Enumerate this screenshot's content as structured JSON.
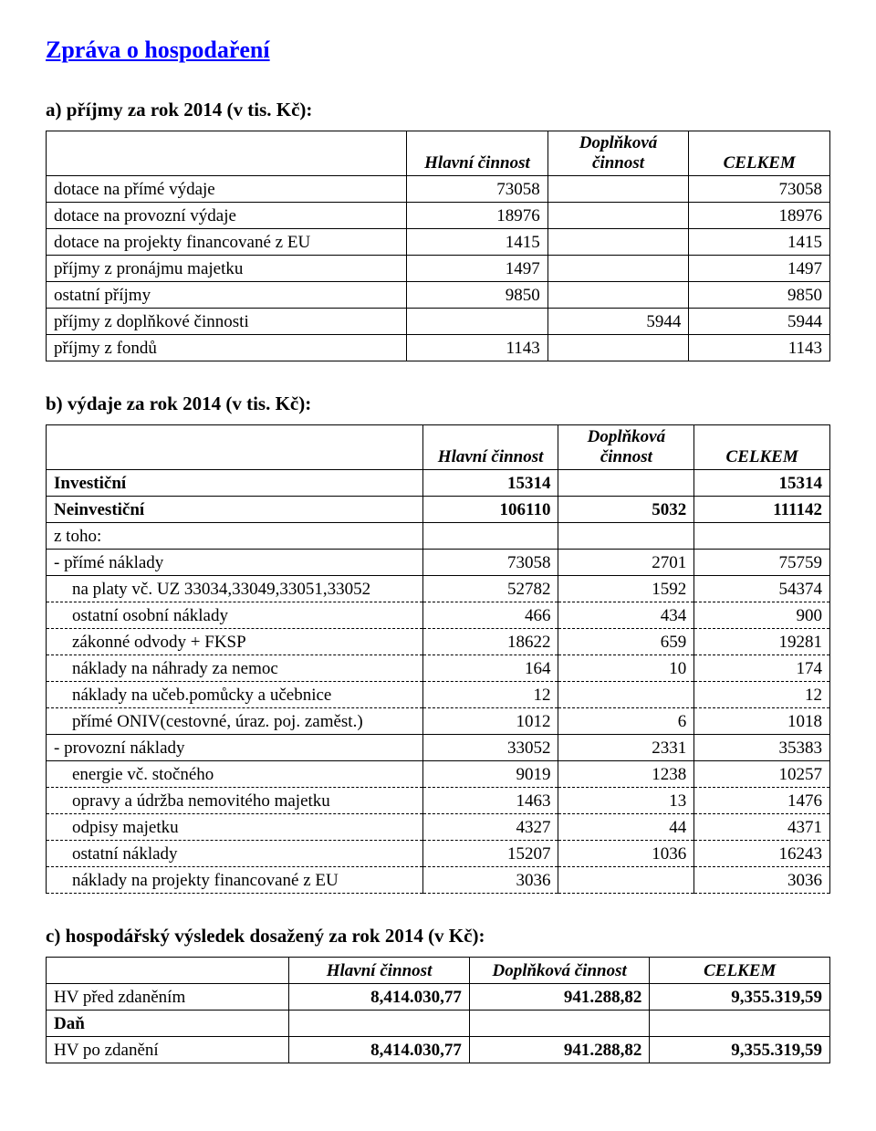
{
  "main_title": "Zpráva o hospodaření",
  "section_a": {
    "heading": "a)  příjmy za rok 2014 (v tis. Kč):",
    "columns": [
      "",
      "Hlavní činnost",
      "Doplňková činnost",
      "CELKEM"
    ],
    "rows": [
      {
        "label": "dotace na přímé výdaje",
        "c1": "73058",
        "c2": "",
        "c3": "73058"
      },
      {
        "label": "dotace na provozní výdaje",
        "c1": "18976",
        "c2": "",
        "c3": "18976"
      },
      {
        "label": "dotace na projekty financované z EU",
        "c1": "1415",
        "c2": "",
        "c3": "1415"
      },
      {
        "label": "příjmy z pronájmu majetku",
        "c1": "1497",
        "c2": "",
        "c3": "1497"
      },
      {
        "label": "ostatní příjmy",
        "c1": "9850",
        "c2": "",
        "c3": "9850"
      },
      {
        "label": "příjmy z doplňkové činnosti",
        "c1": "",
        "c2": "5944",
        "c3": "5944"
      },
      {
        "label": "příjmy z fondů",
        "c1": "1143",
        "c2": "",
        "c3": "1143"
      }
    ]
  },
  "section_b": {
    "heading": "b)  výdaje za rok 2014 (v tis. Kč):",
    "columns": [
      "",
      "Hlavní činnost",
      "Doplňková činnost",
      "CELKEM"
    ],
    "rows": [
      {
        "label": "Investiční",
        "c1": "15314",
        "c2": "",
        "c3": "15314",
        "bold": true
      },
      {
        "label": "Neinvestiční",
        "c1": "106110",
        "c2": "5032",
        "c3": "111142",
        "bold": true
      },
      {
        "label": "z toho:",
        "c1": "",
        "c2": "",
        "c3": ""
      },
      {
        "label": "- přímé náklady",
        "c1": "73058",
        "c2": "2701",
        "c3": "75759"
      },
      {
        "label": "na platy vč. UZ 33034,33049,33051,33052",
        "c1": "52782",
        "c2": "1592",
        "c3": "54374",
        "indent": true,
        "dashed": true
      },
      {
        "label": "ostatní osobní náklady",
        "c1": "466",
        "c2": "434",
        "c3": "900",
        "indent": true,
        "dashed": true
      },
      {
        "label": "zákonné odvody + FKSP",
        "c1": "18622",
        "c2": "659",
        "c3": "19281",
        "indent": true,
        "dashed": true
      },
      {
        "label": "náklady na náhrady za nemoc",
        "c1": "164",
        "c2": "10",
        "c3": "174",
        "indent": true,
        "dashed": true
      },
      {
        "label": "náklady na učeb.pomůcky a učebnice",
        "c1": "12",
        "c2": "",
        "c3": "12",
        "indent": true,
        "dashed": true
      },
      {
        "label": "přímé ONIV(cestovné, úraz. poj. zaměst.)",
        "c1": "1012",
        "c2": "6",
        "c3": "1018",
        "indent": true,
        "dashed": true
      },
      {
        "label": " - provozní náklady",
        "c1": "33052",
        "c2": "2331",
        "c3": "35383"
      },
      {
        "label": "energie vč. stočného",
        "c1": "9019",
        "c2": "1238",
        "c3": "10257",
        "indent": true,
        "dashed": true
      },
      {
        "label": "opravy a údržba nemovitého majetku",
        "c1": "1463",
        "c2": "13",
        "c3": "1476",
        "indent": true,
        "dashed": true
      },
      {
        "label": "odpisy majetku",
        "c1": "4327",
        "c2": "44",
        "c3": "4371",
        "indent": true,
        "dashed": true
      },
      {
        "label": "ostatní náklady",
        "c1": "15207",
        "c2": "1036",
        "c3": "16243",
        "indent": true,
        "dashed": true
      },
      {
        "label": "náklady na projekty financované z EU",
        "c1": "3036",
        "c2": "",
        "c3": "3036",
        "indent": true,
        "dashed": true
      }
    ]
  },
  "section_c": {
    "heading": "c)  hospodářský výsledek dosažený za rok 2014 (v Kč):",
    "columns": [
      "",
      "Hlavní činnost",
      "Doplňková činnost",
      "CELKEM"
    ],
    "rows": [
      {
        "label": "HV před zdaněním",
        "c1": "8,414.030,77",
        "c2": "941.288,82",
        "c3": "9,355.319,59",
        "boldnum": true
      },
      {
        "label": "Daň",
        "c1": "",
        "c2": "",
        "c3": "",
        "bold": true
      },
      {
        "label": "HV po zdanění",
        "c1": "8,414.030,77",
        "c2": "941.288,82",
        "c3": "9,355.319,59",
        "boldnum": true
      }
    ]
  }
}
